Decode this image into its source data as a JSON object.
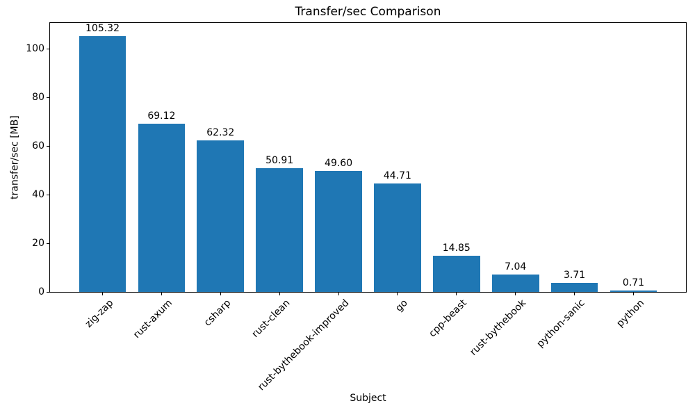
{
  "figure": {
    "background": "#ffffff",
    "text_color": "#000000",
    "spine_color": "#000000"
  },
  "chart_data": {
    "type": "bar",
    "title": "Transfer/sec Comparison",
    "xlabel": "Subject",
    "ylabel": "transfer/sec [MB]",
    "categories": [
      "zig-zap",
      "rust-axum",
      "csharp",
      "rust-clean",
      "rust-bythebook-improved",
      "go",
      "cpp-beast",
      "rust-bythebook",
      "python-sanic",
      "python"
    ],
    "values": [
      105.32,
      69.12,
      62.32,
      50.91,
      49.6,
      44.71,
      14.85,
      7.04,
      3.71,
      0.71
    ],
    "bar_labels": [
      "105.32",
      "69.12",
      "62.32",
      "50.91",
      "49.60",
      "44.71",
      "14.85",
      "7.04",
      "3.71",
      "0.71"
    ],
    "yticks": [
      0,
      20,
      40,
      60,
      80,
      100
    ],
    "ylim": [
      0,
      110.6
    ],
    "bar_color": "#1f77b4",
    "grid": false,
    "legend": null
  }
}
